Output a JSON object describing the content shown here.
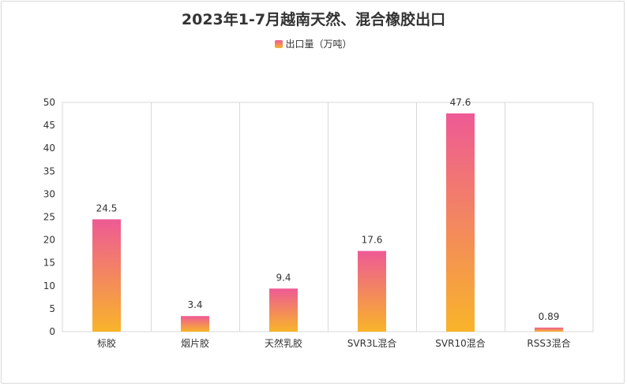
{
  "chart_data": {
    "type": "bar",
    "title": "2023年1-7月越南天然、混合橡胶出口",
    "legend": [
      "出口量（万吨）"
    ],
    "legend_position": "top",
    "categories": [
      "标胶",
      "烟片胶",
      "天然乳胶",
      "SVR3L混合",
      "SVR10混合",
      "RSS3混合"
    ],
    "series": [
      {
        "name": "出口量（万吨）",
        "values": [
          24.5,
          3.4,
          9.4,
          17.6,
          47.6,
          0.89
        ]
      }
    ],
    "value_labels": [
      "24.5",
      "3.4",
      "9.4",
      "17.6",
      "47.6",
      "0.89"
    ],
    "ylim": [
      0,
      50
    ],
    "yticks": [
      0,
      5,
      10,
      15,
      20,
      25,
      30,
      35,
      40,
      45,
      50
    ],
    "grid": "vertical category separators",
    "colors": {
      "gradient_top": "#ee5a95",
      "gradient_bottom": "#f8b42a"
    }
  }
}
